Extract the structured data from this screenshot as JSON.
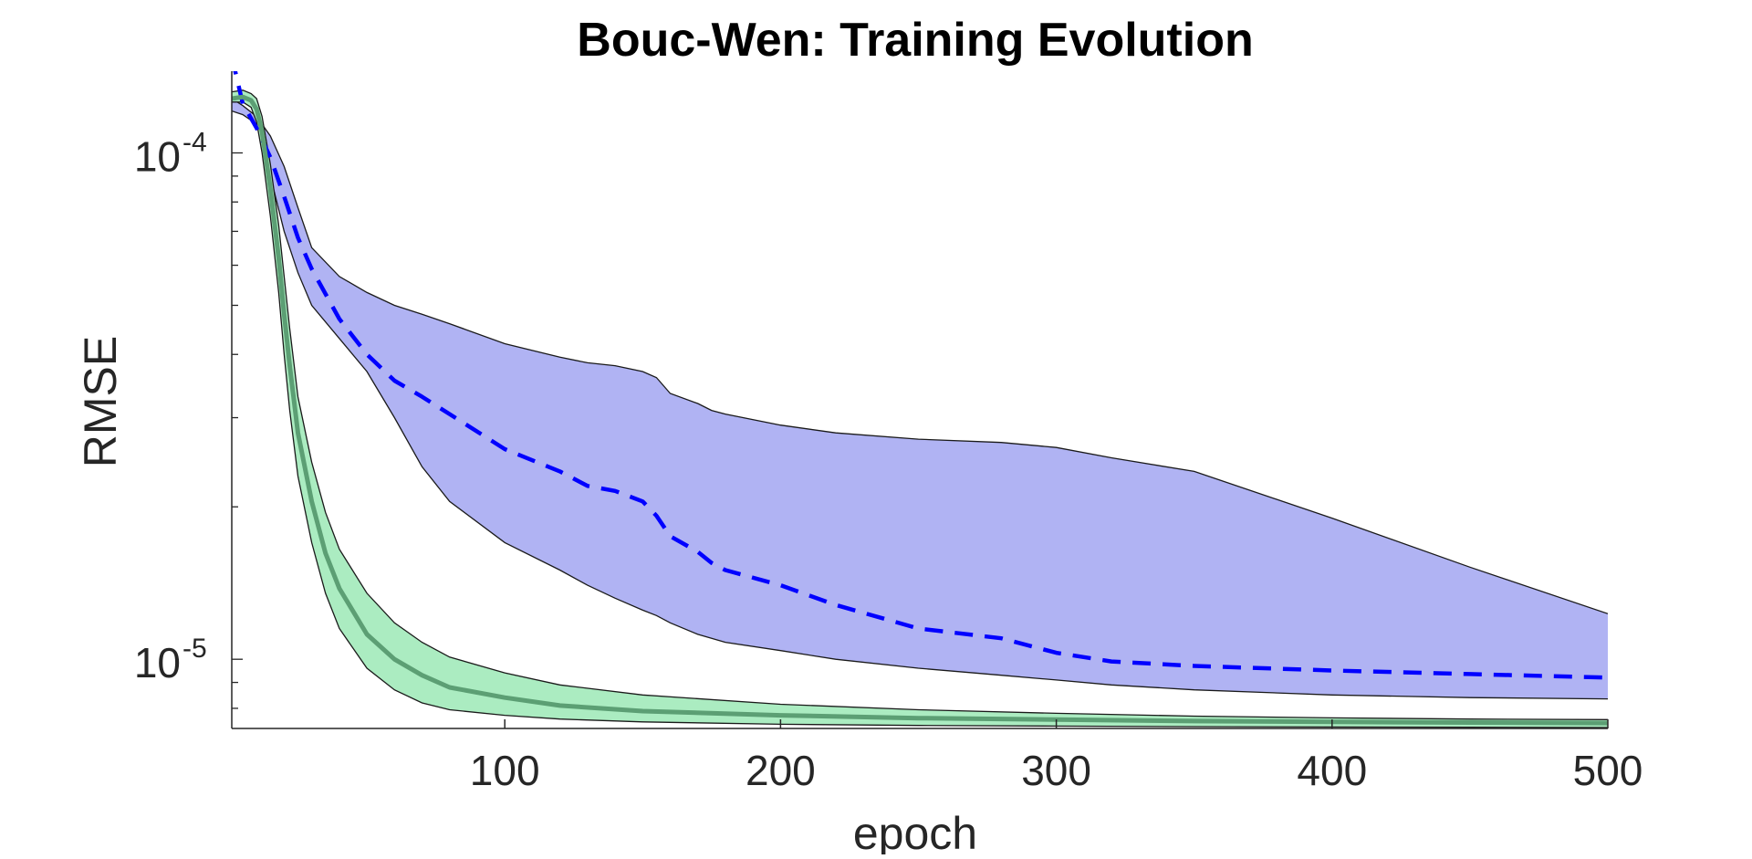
{
  "chart_data": {
    "type": "area",
    "title": "Bouc-Wen: Training Evolution",
    "xlabel": "epoch",
    "ylabel": "RMSE",
    "xlim": [
      1,
      500
    ],
    "ylim": [
      7.3e-06,
      0.000145
    ],
    "yscale": "log",
    "grid": false,
    "legend": "none",
    "xticks": [
      {
        "value": 100,
        "label": "100"
      },
      {
        "value": 200,
        "label": "200"
      },
      {
        "value": 300,
        "label": "300"
      },
      {
        "value": 400,
        "label": "400"
      },
      {
        "value": 500,
        "label": "500"
      }
    ],
    "yticks": [
      {
        "value": 1e-05,
        "base": "10",
        "exp": "-5"
      },
      {
        "value": 0.0001,
        "base": "10",
        "exp": "-4"
      }
    ],
    "series": [
      {
        "style": "dashed",
        "color": "#0000ff",
        "band_color": "#b0b3f3",
        "x": [
          1,
          5,
          10,
          15,
          20,
          25,
          30,
          40,
          50,
          60,
          70,
          80,
          100,
          120,
          130,
          140,
          150,
          155,
          160,
          170,
          175,
          180,
          200,
          220,
          250,
          280,
          300,
          320,
          350,
          400,
          450,
          500
        ],
        "mean": [
          0.000155,
          0.000125,
          0.000112,
          9.8e-05,
          8.2e-05,
          6.8e-05,
          5.9e-05,
          4.7e-05,
          4e-05,
          3.55e-05,
          3.3e-05,
          3.05e-05,
          2.6e-05,
          2.35e-05,
          2.2e-05,
          2.15e-05,
          2.05e-05,
          1.92e-05,
          1.75e-05,
          1.63e-05,
          1.55e-05,
          1.5e-05,
          1.4e-05,
          1.28e-05,
          1.15e-05,
          1.1e-05,
          1.03e-05,
          9.9e-06,
          9.7e-06,
          9.5e-06,
          9.35e-06,
          9.2e-06
        ],
        "upper": [
          0.000128,
          0.000124,
          0.000118,
          0.000108,
          9.4e-05,
          7.8e-05,
          6.5e-05,
          5.7e-05,
          5.3e-05,
          5e-05,
          4.8e-05,
          4.6e-05,
          4.2e-05,
          3.95e-05,
          3.85e-05,
          3.8e-05,
          3.7e-05,
          3.6e-05,
          3.35e-05,
          3.2e-05,
          3.1e-05,
          3.05e-05,
          2.9e-05,
          2.8e-05,
          2.72e-05,
          2.68e-05,
          2.62e-05,
          2.5e-05,
          2.35e-05,
          1.9e-05,
          1.52e-05,
          1.23e-05
        ],
        "lower": [
          0.000121,
          0.000119,
          0.000114,
          9e-05,
          7e-05,
          5.8e-05,
          5e-05,
          4.3e-05,
          3.7e-05,
          3e-05,
          2.4e-05,
          2.05e-05,
          1.7e-05,
          1.5e-05,
          1.4e-05,
          1.32e-05,
          1.25e-05,
          1.22e-05,
          1.18e-05,
          1.12e-05,
          1.1e-05,
          1.08e-05,
          1.04e-05,
          1e-05,
          9.6e-06,
          9.3e-06,
          9.1e-06,
          8.9e-06,
          8.7e-06,
          8.5e-06,
          8.4e-06,
          8.35e-06
        ]
      },
      {
        "style": "solid",
        "color": "#5c9f74",
        "band_color": "#a6ebbe",
        "x": [
          1,
          5,
          8,
          10,
          12,
          15,
          18,
          20,
          22,
          25,
          30,
          35,
          40,
          50,
          60,
          70,
          80,
          100,
          120,
          150,
          200,
          250,
          300,
          350,
          400,
          450,
          500
        ],
        "mean": [
          0.000128,
          0.000129,
          0.000127,
          0.000122,
          0.00011,
          8.5e-05,
          6.2e-05,
          4.8e-05,
          3.8e-05,
          2.8e-05,
          2.05e-05,
          1.62e-05,
          1.38e-05,
          1.12e-05,
          1e-05,
          9.3e-06,
          8.8e-06,
          8.4e-06,
          8.1e-06,
          7.9e-06,
          7.75e-06,
          7.65e-06,
          7.6e-06,
          7.55e-06,
          7.52e-06,
          7.5e-06,
          7.48e-06
        ],
        "upper": [
          0.000132,
          0.000133,
          0.000131,
          0.000128,
          0.000118,
          9.5e-05,
          7.2e-05,
          5.7e-05,
          4.5e-05,
          3.3e-05,
          2.45e-05,
          1.95e-05,
          1.65e-05,
          1.35e-05,
          1.18e-05,
          1.08e-05,
          1.01e-05,
          9.4e-06,
          8.9e-06,
          8.5e-06,
          8.15e-06,
          7.95e-06,
          7.82e-06,
          7.72e-06,
          7.66e-06,
          7.62e-06,
          7.6e-06
        ],
        "lower": [
          0.000126,
          0.000126,
          0.000123,
          0.000115,
          0.0001,
          7.5e-05,
          5.3e-05,
          4e-05,
          3.1e-05,
          2.3e-05,
          1.7e-05,
          1.35e-05,
          1.15e-05,
          9.6e-06,
          8.7e-06,
          8.2e-06,
          7.95e-06,
          7.75e-06,
          7.62e-06,
          7.52e-06,
          7.44e-06,
          7.4e-06,
          7.38e-06,
          7.36e-06,
          7.35e-06,
          7.34e-06,
          7.33e-06
        ]
      }
    ]
  }
}
